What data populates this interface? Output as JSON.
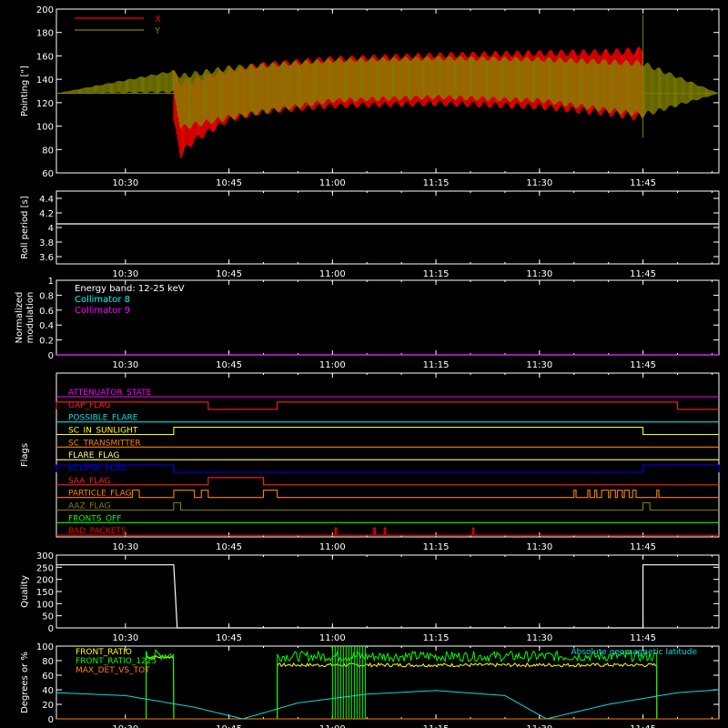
{
  "chart_data": [
    {
      "id": "pointing",
      "type": "line",
      "ylabel": "Pointing [\"]",
      "ylim": [
        60,
        200
      ],
      "yticks": [
        60,
        80,
        100,
        120,
        140,
        160,
        180,
        200
      ],
      "xlim": [
        "10:20",
        "11:56"
      ],
      "xticks": [
        "10:30",
        "10:45",
        "11:00",
        "11:15",
        "11:30",
        "11:45"
      ],
      "legend": [
        "X",
        "Y"
      ],
      "series": [
        {
          "name": "X",
          "color": "#ff0000",
          "x": [
            "10:37",
            "10:38",
            "10:40",
            "10:45",
            "10:50",
            "11:00",
            "11:15",
            "11:30",
            "11:40",
            "11:45"
          ],
          "y_min": [
            100,
            72,
            85,
            103,
            110,
            115,
            117,
            114,
            108,
            104
          ],
          "y_max": [
            147,
            140,
            142,
            150,
            155,
            160,
            163,
            165,
            166,
            168
          ]
        },
        {
          "name": "Y",
          "color": "#808000",
          "x": [
            "10:20",
            "10:37",
            "10:38",
            "10:45",
            "11:00",
            "11:15",
            "11:30",
            "11:45",
            "11:56"
          ],
          "y_min": [
            128,
            128,
            96,
            105,
            120,
            123,
            120,
            107,
            128
          ],
          "y_max": [
            128,
            148,
            145,
            152,
            158,
            160,
            159,
            156,
            128
          ]
        }
      ]
    },
    {
      "id": "roll",
      "type": "line",
      "ylabel": "Roll period [s]",
      "ylim": [
        3.5,
        4.5
      ],
      "yticks": [
        3.6,
        3.8,
        4.0,
        4.2,
        4.4
      ],
      "xticks": [
        "10:30",
        "10:45",
        "11:00",
        "11:15",
        "11:30",
        "11:45"
      ],
      "series": [
        {
          "color": "#ffffff",
          "x": [
            "10:20",
            "11:56"
          ],
          "y": [
            4.05,
            4.05
          ]
        }
      ]
    },
    {
      "id": "modulation",
      "type": "line",
      "ylabel": "Normalized\nmodulation",
      "ylim": [
        0.0,
        1.0
      ],
      "yticks": [
        0.0,
        0.2,
        0.4,
        0.6,
        0.8,
        1.0
      ],
      "xticks": [
        "10:30",
        "10:45",
        "11:00",
        "11:15",
        "11:30",
        "11:45"
      ],
      "annotations": [
        "Energy band: 12-25 keV",
        "Collimator 8",
        "Collimator 9"
      ],
      "series": [
        {
          "name": "Collimator 8",
          "color": "#00ffff",
          "x": [
            "10:20",
            "11:56"
          ],
          "y": [
            0,
            0
          ]
        },
        {
          "name": "Collimator 9",
          "color": "#ff00ff",
          "x": [
            "10:20",
            "11:56"
          ],
          "y": [
            0,
            0
          ]
        }
      ]
    },
    {
      "id": "flags",
      "type": "line",
      "ylabel": "Flags",
      "xticks": [
        "10:30",
        "10:45",
        "11:00",
        "11:15",
        "11:30",
        "11:45"
      ],
      "flags": [
        {
          "name": "ATTENUATOR_STATE",
          "color": "#ff00ff",
          "on": []
        },
        {
          "name": "GAP_FLAG",
          "color": "#ff2020",
          "on": [
            [
              "10:20",
              "10:42"
            ],
            [
              "10:52",
              "11:50"
            ]
          ]
        },
        {
          "name": "POSSIBLE_FLARE",
          "color": "#00e0e0",
          "on": []
        },
        {
          "name": "SC_IN_SUNLIGHT",
          "color": "#ffff00",
          "on": [
            [
              "10:37",
              "11:45"
            ]
          ]
        },
        {
          "name": "SC_TRANSMITTER",
          "color": "#ff8000",
          "on": []
        },
        {
          "name": "FLARE_FLAG",
          "color": "#ffff80",
          "on": []
        },
        {
          "name": "ECLIPSE_FLAG",
          "color": "#0000ff",
          "on": [
            [
              "10:20",
              "10:37"
            ],
            [
              "11:45",
              "11:56"
            ]
          ]
        },
        {
          "name": "SAA_FLAG",
          "color": "#ff2020",
          "on": [
            [
              "10:42",
              "10:50"
            ]
          ]
        },
        {
          "name": "PARTICLE_FLAG",
          "color": "#ff8000",
          "on": [
            [
              "10:31",
              "10:32"
            ],
            [
              "10:37",
              "10:40"
            ],
            [
              "10:41",
              "10:42"
            ],
            [
              "10:50",
              "10:52"
            ],
            [
              "11:35",
              "11:35.3"
            ],
            [
              "11:37",
              "11:37.3"
            ],
            [
              "11:38",
              "11:38.3"
            ],
            [
              "11:39",
              "11:40"
            ],
            [
              "11:40.3",
              "11:41"
            ],
            [
              "11:41.3",
              "11:42"
            ],
            [
              "11:42.3",
              "11:43"
            ],
            [
              "11:43.5",
              "11:44"
            ],
            [
              "11:47",
              "11:47.3"
            ]
          ]
        },
        {
          "name": "AAZ_FLAG",
          "color": "#808000",
          "on": [
            [
              "10:37",
              "10:38"
            ],
            [
              "11:45",
              "11:46"
            ]
          ]
        },
        {
          "name": "FRONTS_OFF",
          "color": "#00ff00",
          "on": []
        },
        {
          "name": "BAD_PACKETS",
          "color": "#ff0000",
          "on": [
            [
              "11:00.4",
              "11:00.6"
            ],
            [
              "11:06",
              "11:06.2"
            ],
            [
              "11:07.5",
              "11:07.7"
            ],
            [
              "11:20.3",
              "11:20.5"
            ]
          ]
        }
      ]
    },
    {
      "id": "quality",
      "type": "line",
      "ylabel": "Quality",
      "ylim": [
        0,
        300
      ],
      "yticks": [
        0,
        50,
        100,
        150,
        200,
        250,
        300
      ],
      "xticks": [
        "10:30",
        "10:45",
        "11:00",
        "11:15",
        "11:30",
        "11:45"
      ],
      "series": [
        {
          "color": "#ffffff",
          "x": [
            "10:20",
            "10:37",
            "10:37.5",
            "11:45",
            "11:45",
            "11:56"
          ],
          "y": [
            260,
            260,
            0,
            0,
            260,
            260
          ]
        }
      ]
    },
    {
      "id": "ratios",
      "type": "line",
      "ylabel": "Degrees or %",
      "ylim": [
        0,
        100
      ],
      "yticks": [
        0,
        20,
        40,
        60,
        80,
        100
      ],
      "xticks": [
        "10:30",
        "10:45",
        "11:00",
        "11:15",
        "11:30",
        "11:45"
      ],
      "legend": [
        "FRONT_RATIO",
        "FRONT_RATIO_1225",
        "MAX_DET_VS_TOT"
      ],
      "annotation": "Absolute geomagnetic latitude",
      "series": [
        {
          "name": "FRONT_RATIO",
          "color": "#ffff00",
          "segments": [
            {
              "start": "10:33",
              "end": "10:37",
              "y": 85
            },
            {
              "start": "10:52",
              "end": "11:47",
              "y": 74
            }
          ]
        },
        {
          "name": "FRONT_RATIO_1225",
          "color": "#00ff00",
          "segments": [
            {
              "start": "10:33",
              "end": "10:37",
              "y": 88
            },
            {
              "start": "10:52",
              "end": "11:47",
              "y": 86
            }
          ],
          "burst": {
            "start": "11:00",
            "end": "11:05",
            "y": [
              60,
              100
            ]
          }
        },
        {
          "name": "MAX_DET_VS_TOT",
          "color": "#ff8000",
          "segments": [
            {
              "start": "10:20",
              "end": "11:56",
              "y": 0
            }
          ]
        },
        {
          "name": "Absolute geomagnetic latitude",
          "color": "#00e0e0",
          "x": [
            "10:20",
            "10:30",
            "10:40",
            "10:47",
            "10:55",
            "11:05",
            "11:15",
            "11:25",
            "11:31",
            "11:40",
            "11:50",
            "11:56"
          ],
          "y": [
            36,
            32,
            16,
            0,
            22,
            34,
            39,
            32,
            0,
            20,
            36,
            40
          ]
        }
      ]
    }
  ]
}
